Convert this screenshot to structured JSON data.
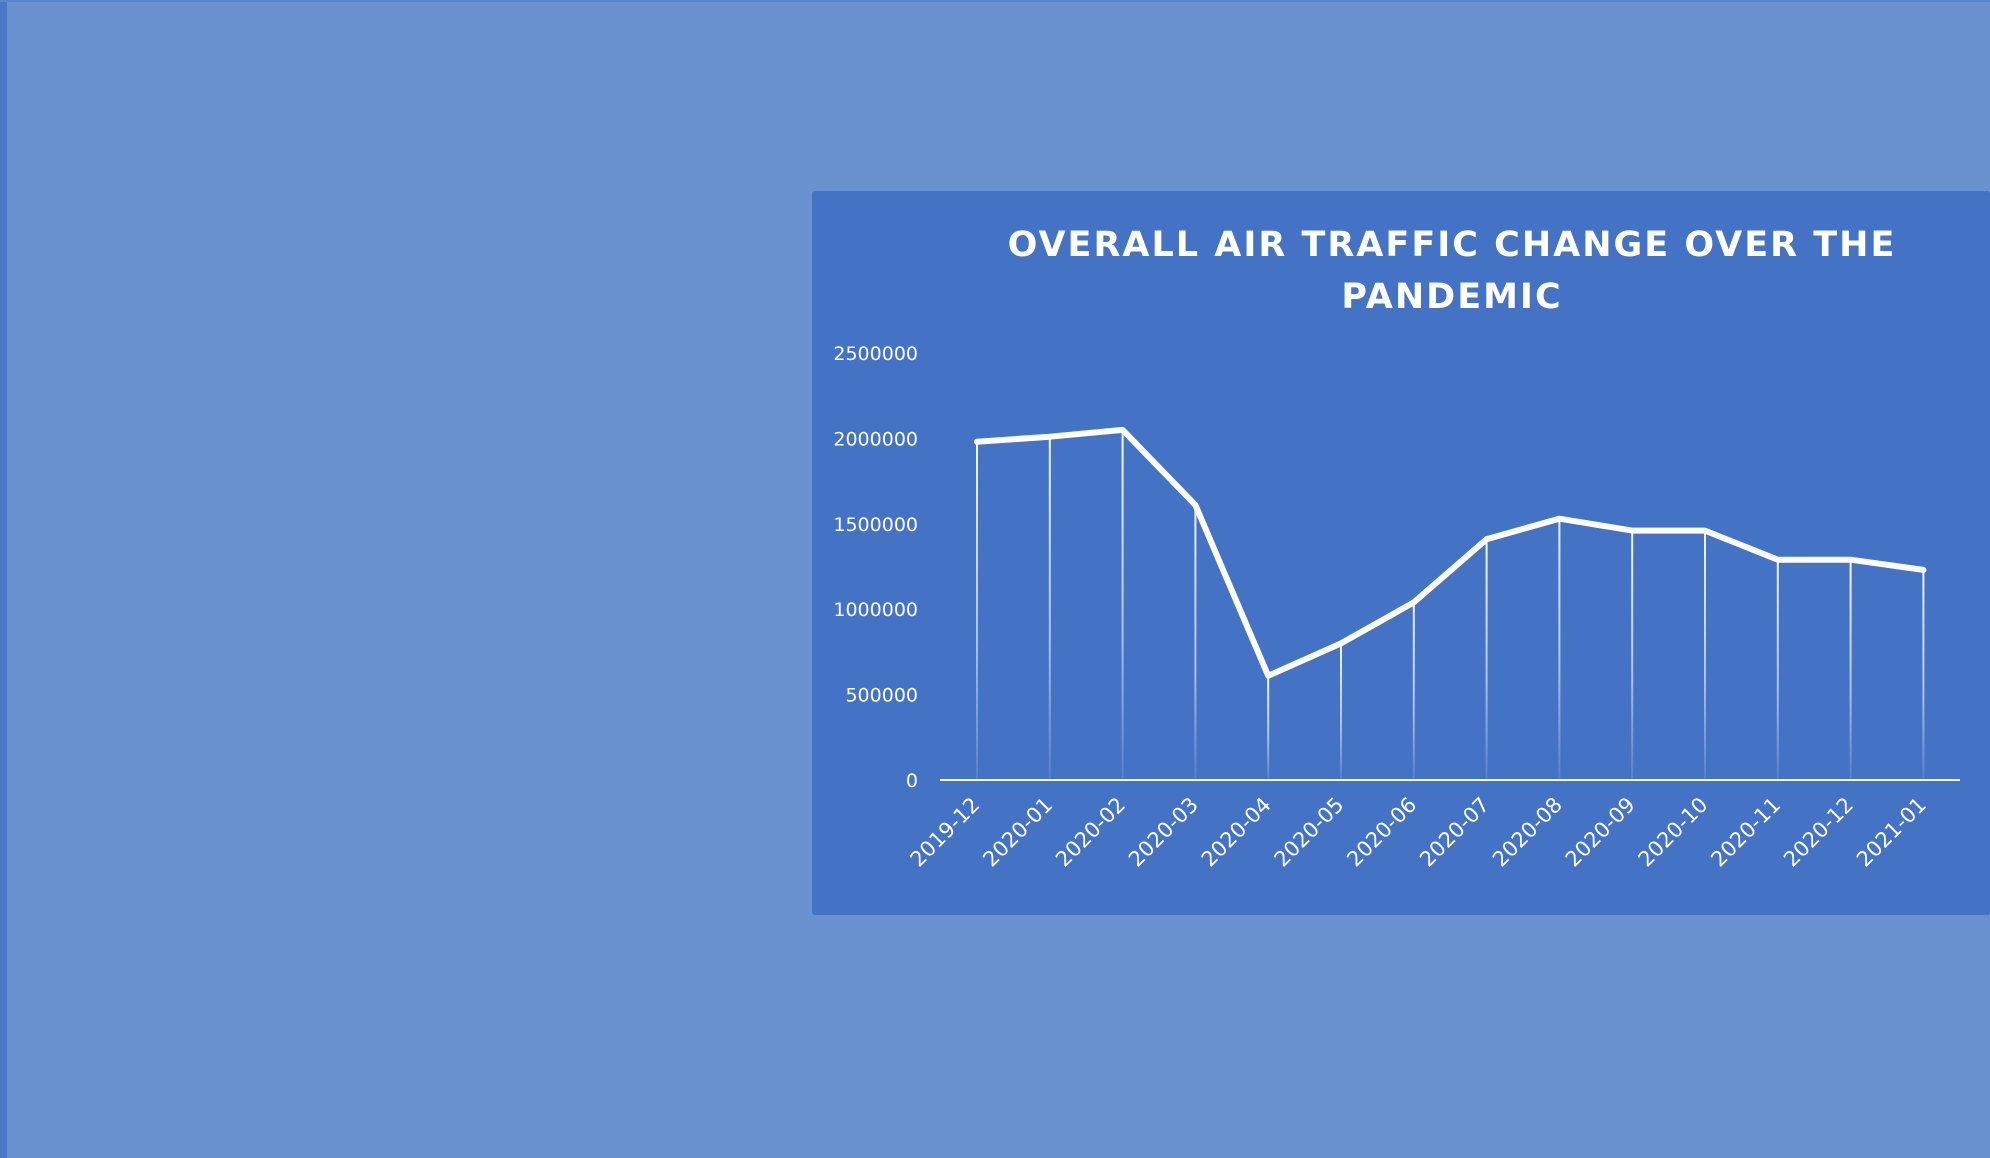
{
  "chart_data": {
    "type": "line",
    "title_lines": [
      "OVERALL AIR TRAFFIC CHANGE OVER THE",
      "PANDEMIC"
    ],
    "xlabel": "",
    "ylabel": "",
    "categories": [
      "2019-12",
      "2020-01",
      "2020-02",
      "2020-03",
      "2020-04",
      "2020-05",
      "2020-06",
      "2020-07",
      "2020-08",
      "2020-09",
      "2020-10",
      "2020-11",
      "2020-12",
      "2021-01"
    ],
    "series": [
      {
        "values": [
          1980000,
          2010000,
          2050000,
          1610000,
          610000,
          800000,
          1040000,
          1410000,
          1530000,
          1460000,
          1460000,
          1290000,
          1290000,
          1230000
        ]
      }
    ],
    "yticks": [
      "0",
      "500000",
      "1000000",
      "1500000",
      "2000000",
      "2500000"
    ],
    "ylim": [
      0,
      2500000
    ],
    "drop_lines": true,
    "grid": false,
    "legend": "none",
    "colors": {
      "background": "#6a92d0",
      "panel": "#4472c4",
      "line": "#ffffff",
      "text": "#ffffff"
    }
  }
}
